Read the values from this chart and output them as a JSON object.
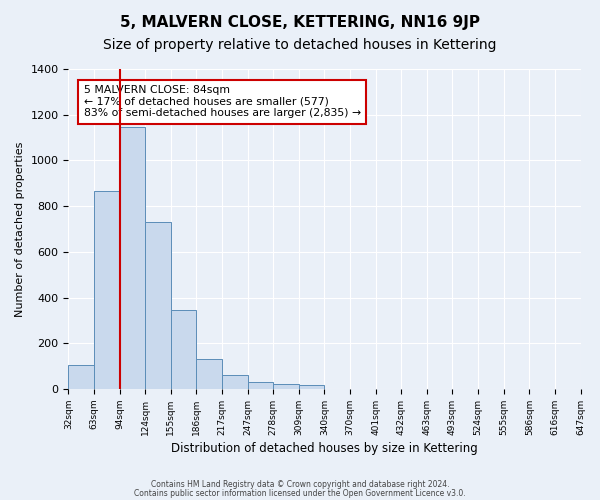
{
  "title": "5, MALVERN CLOSE, KETTERING, NN16 9JP",
  "subtitle": "Size of property relative to detached houses in Kettering",
  "xlabel": "Distribution of detached houses by size in Kettering",
  "ylabel": "Number of detached properties",
  "bar_heights": [
    105,
    865,
    1145,
    730,
    345,
    130,
    60,
    32,
    20,
    18,
    0,
    0,
    0,
    0,
    0,
    0,
    0,
    0,
    0,
    0
  ],
  "categories": [
    "32sqm",
    "63sqm",
    "94sqm",
    "124sqm",
    "155sqm",
    "186sqm",
    "217sqm",
    "247sqm",
    "278sqm",
    "309sqm",
    "340sqm",
    "370sqm",
    "401sqm",
    "432sqm",
    "463sqm",
    "493sqm",
    "524sqm",
    "555sqm",
    "586sqm",
    "616sqm",
    "647sqm"
  ],
  "bar_color": "#c9d9ed",
  "bar_edge_color": "#5b8db8",
  "red_line_x": 2,
  "red_line_color": "#cc0000",
  "annotation_title": "5 MALVERN CLOSE: 84sqm",
  "annotation_line1": "← 17% of detached houses are smaller (577)",
  "annotation_line2": "83% of semi-detached houses are larger (2,835) →",
  "annotation_box_color": "#ffffff",
  "annotation_box_edge": "#cc0000",
  "ylim": [
    0,
    1400
  ],
  "yticks": [
    0,
    200,
    400,
    600,
    800,
    1000,
    1200,
    1400
  ],
  "bg_color": "#eaf0f8",
  "plot_bg_color": "#eaf0f8",
  "grid_color": "#ffffff",
  "footer_line1": "Contains HM Land Registry data © Crown copyright and database right 2024.",
  "footer_line2": "Contains public sector information licensed under the Open Government Licence v3.0.",
  "title_fontsize": 11,
  "subtitle_fontsize": 10
}
